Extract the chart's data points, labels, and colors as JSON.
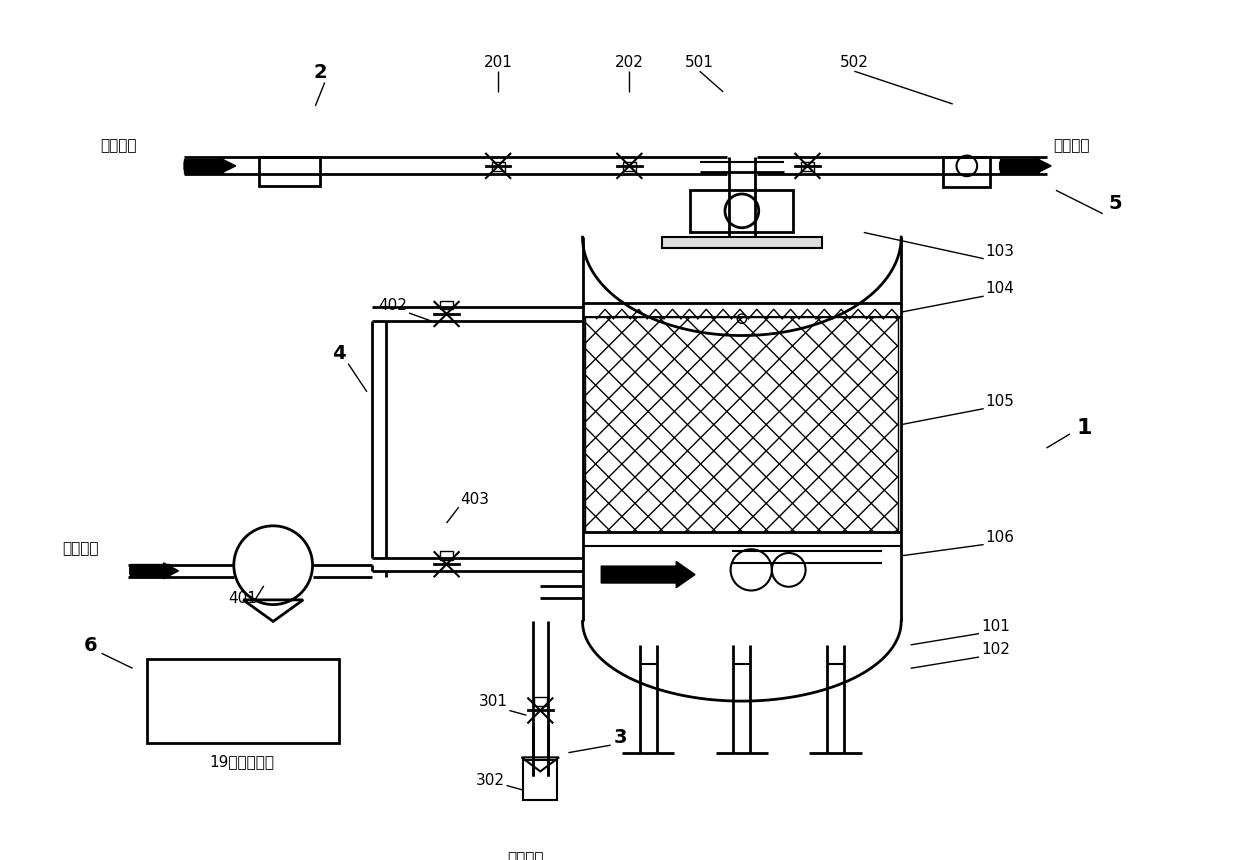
{
  "bg_color": "#ffffff",
  "line_color": "#000000",
  "labels": {
    "guolv_jinshui": "过滤进水",
    "fanxi_chushui": "反洗出水",
    "fanxi_jinshui": "反洗进水",
    "guolv_chushui": "过滤出水",
    "controller_label": "19变频控制器",
    "num_2": "2",
    "num_201": "201",
    "num_202": "202",
    "num_501": "501",
    "num_502": "502",
    "num_5": "5",
    "num_1": "1",
    "num_101": "101",
    "num_102": "102",
    "num_103": "103",
    "num_104": "104",
    "num_105": "105",
    "num_106": "106",
    "num_3": "3",
    "num_301": "301",
    "num_302": "302",
    "num_4": "4",
    "num_401": "401",
    "num_402": "402",
    "num_403": "403",
    "num_6": "6"
  }
}
